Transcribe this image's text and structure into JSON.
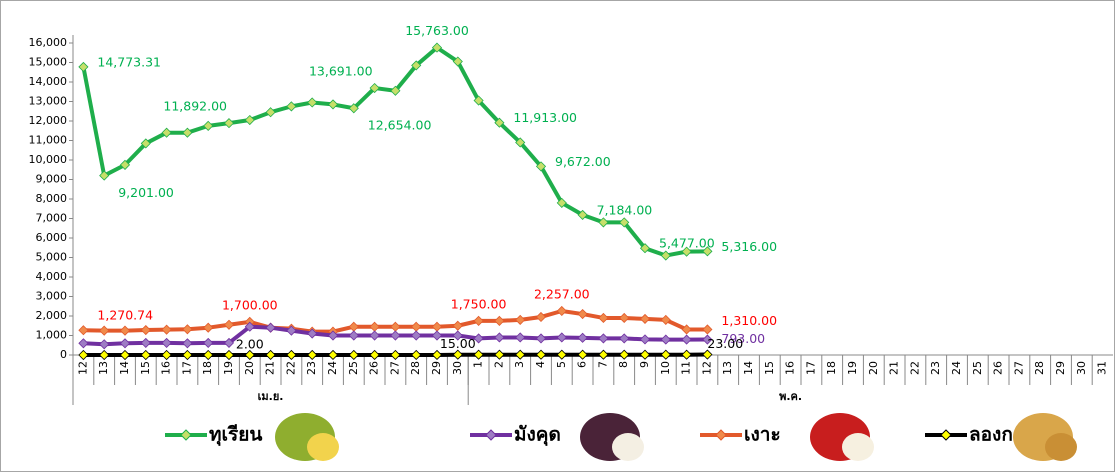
{
  "chart_data": {
    "type": "line",
    "categories": [
      "12",
      "13",
      "14",
      "15",
      "16",
      "17",
      "18",
      "19",
      "20",
      "21",
      "22",
      "23",
      "24",
      "25",
      "26",
      "27",
      "28",
      "29",
      "30",
      "1",
      "2",
      "3",
      "4",
      "5",
      "6",
      "7",
      "8",
      "9",
      "10",
      "11",
      "12",
      "13",
      "14",
      "15",
      "16",
      "17",
      "18",
      "19",
      "20",
      "21",
      "22",
      "23",
      "24",
      "25",
      "26",
      "27",
      "28",
      "29",
      "30",
      "31"
    ],
    "groups": [
      {
        "label": "เม.ย.",
        "from": 0,
        "to": 18
      },
      {
        "label": "พ.ค.",
        "from": 19,
        "to": 49
      }
    ],
    "ylim": [
      0,
      16000
    ],
    "yticks": [
      0,
      {
        "value": 1000,
        "label": "1,000"
      },
      {
        "value": 2000,
        "label": "2,000"
      },
      {
        "value": 3000,
        "label": "3,000"
      },
      {
        "value": 4000,
        "label": "4,000"
      },
      {
        "value": 5000,
        "label": "5,000"
      },
      {
        "value": 6000,
        "label": "6,000"
      },
      {
        "value": 7000,
        "label": "7,000"
      },
      {
        "value": 8000,
        "label": "8,000"
      },
      {
        "value": 9000,
        "label": "9,000"
      },
      {
        "value": 10000,
        "label": "10,000"
      },
      {
        "value": 11000,
        "label": "11,000"
      },
      {
        "value": 12000,
        "label": "12,000"
      },
      {
        "value": 13000,
        "label": "13,000"
      },
      {
        "value": 14000,
        "label": "14,000"
      },
      {
        "value": 15000,
        "label": "15,000"
      },
      {
        "value": 16000,
        "label": "16,000"
      }
    ],
    "legend": "bottom",
    "series": [
      {
        "name": "ทุเรียน",
        "color": "#1fae4b",
        "marker": "#c6df6a",
        "label_color": "#00b050",
        "values": [
          14773.31,
          9201,
          9750,
          10850,
          11400,
          11400,
          11750,
          11892,
          12050,
          12450,
          12750,
          12950,
          12850,
          12654,
          13691,
          13550,
          14850,
          15763,
          15050,
          13050,
          11913,
          10900,
          9672,
          7800,
          7184,
          6800,
          6800,
          5477,
          5100,
          5300,
          5316,
          null,
          null,
          null,
          null,
          null,
          null,
          null,
          null,
          null,
          null,
          null,
          null,
          null,
          null,
          null,
          null,
          null,
          null,
          null
        ],
        "value_labels": [
          "14,773.31",
          "9,201.00",
          null,
          null,
          null,
          null,
          null,
          "11,892.00",
          null,
          null,
          null,
          null,
          null,
          "12,654.00",
          "13,691.00",
          null,
          null,
          "15,763.00",
          null,
          null,
          "11,913.00",
          null,
          "9,672.00",
          null,
          "7,184.00",
          null,
          null,
          "5,477.00",
          null,
          null,
          "5,316.00",
          null,
          null,
          null,
          null,
          null,
          null,
          null,
          null,
          null,
          null,
          null,
          null,
          null,
          null,
          null,
          null,
          null,
          null,
          null
        ]
      },
      {
        "name": "มังคุด",
        "color": "#7030a0",
        "marker": "#9e7cc4",
        "label_color": "#7030a0",
        "values": [
          600,
          550,
          600,
          620,
          620,
          600,
          620,
          620,
          1450,
          1400,
          1250,
          1100,
          1000,
          1000,
          1000,
          1000,
          1000,
          1000,
          1000,
          850,
          900,
          900,
          850,
          900,
          880,
          850,
          850,
          800,
          790,
          790,
          793,
          null,
          null,
          null,
          null,
          null,
          null,
          null,
          null,
          null,
          null,
          null,
          null,
          null,
          null,
          null,
          null,
          null,
          null,
          null
        ],
        "value_labels": [
          null,
          null,
          null,
          null,
          null,
          null,
          null,
          null,
          null,
          null,
          null,
          null,
          null,
          null,
          null,
          null,
          null,
          null,
          null,
          null,
          null,
          null,
          null,
          null,
          null,
          null,
          null,
          null,
          null,
          null,
          "793.00",
          null,
          null,
          null,
          null,
          null,
          null,
          null,
          null,
          null,
          null,
          null,
          null,
          null,
          null,
          null,
          null,
          null,
          null,
          null
        ]
      },
      {
        "name": "เงาะ",
        "color": "#e2592b",
        "marker": "#f08a4b",
        "label_color": "#ff0000",
        "values": [
          1270.74,
          1250,
          1250,
          1280,
          1300,
          1320,
          1400,
          1550,
          1700,
          1400,
          1350,
          1200,
          1200,
          1450,
          1450,
          1450,
          1450,
          1450,
          1500,
          1750,
          1750,
          1800,
          1950,
          2257,
          2100,
          1900,
          1900,
          1850,
          1800,
          1310,
          1310,
          null,
          null,
          null,
          null,
          null,
          null,
          null,
          null,
          null,
          null,
          null,
          null,
          null,
          null,
          null,
          null,
          null,
          null,
          null
        ],
        "value_labels": [
          "1,270.74",
          null,
          null,
          null,
          null,
          null,
          null,
          null,
          "1,700.00",
          null,
          null,
          null,
          null,
          null,
          null,
          null,
          null,
          null,
          null,
          "1,750.00",
          null,
          null,
          null,
          "2,257.00",
          null,
          null,
          null,
          null,
          null,
          null,
          "1,310.00",
          null,
          null,
          null,
          null,
          null,
          null,
          null,
          null,
          null,
          null,
          null,
          null,
          null,
          null,
          null,
          null,
          null,
          null,
          null
        ]
      },
      {
        "name": "ลองกอง",
        "color": "#000000",
        "marker": "#ffff00",
        "label_color": "#000000",
        "values": [
          0,
          0,
          0,
          0,
          0,
          0,
          0,
          0,
          2,
          2,
          2,
          2,
          2,
          2,
          2,
          2,
          2,
          2,
          15,
          15,
          15,
          15,
          15,
          15,
          15,
          15,
          15,
          15,
          15,
          15,
          23,
          null,
          null,
          null,
          null,
          null,
          null,
          null,
          null,
          null,
          null,
          null,
          null,
          null,
          null,
          null,
          null,
          null,
          null,
          null
        ],
        "value_labels": [
          null,
          null,
          null,
          null,
          null,
          null,
          null,
          null,
          "2.00",
          null,
          null,
          null,
          null,
          null,
          null,
          null,
          null,
          null,
          "15.00",
          null,
          null,
          null,
          null,
          null,
          null,
          null,
          null,
          null,
          null,
          null,
          "23.00",
          null,
          null,
          null,
          null,
          null,
          null,
          null,
          null,
          null,
          null,
          null,
          null,
          null,
          null,
          null,
          null,
          null,
          null,
          null
        ]
      }
    ]
  }
}
